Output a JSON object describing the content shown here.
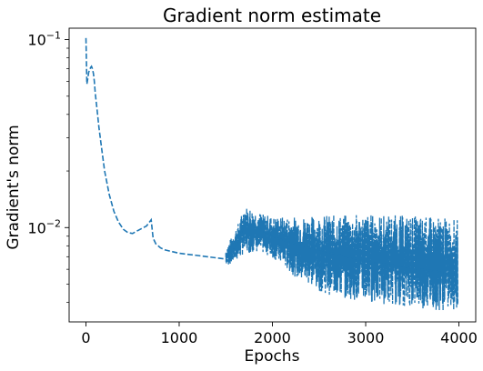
{
  "chart_data": {
    "type": "line",
    "title": "Gradient norm estimate",
    "xlabel": "Epochs",
    "ylabel": "Gradient's norm",
    "xlim": [
      -180,
      4180
    ],
    "ylim": [
      0.00315,
      0.115
    ],
    "yscale": "log",
    "grid": false,
    "line_style": "dashed",
    "line_color": "#1f77b4",
    "x_ticks": [
      0,
      1000,
      2000,
      3000,
      4000
    ],
    "x_tick_labels": [
      "0",
      "1000",
      "2000",
      "3000",
      "4000"
    ],
    "y_ticks": [
      0.1,
      0.01
    ],
    "y_tick_labels": [
      {
        "base": "10",
        "exp": "−1"
      },
      {
        "base": "10",
        "exp": "−2"
      }
    ],
    "series": [
      {
        "x": [
          0,
          10,
          20,
          30,
          40,
          50,
          60,
          70,
          80,
          90,
          100,
          120,
          140,
          170,
          200,
          250,
          300,
          350,
          400,
          450,
          500,
          550,
          600,
          650,
          700,
          720,
          750,
          800,
          850,
          900,
          1000,
          1100,
          1200,
          1300,
          1400,
          1500,
          1600,
          1650,
          1700,
          1800,
          1900,
          2000,
          2100,
          2200,
          2300,
          2400,
          2500,
          2600,
          2700,
          2800,
          2900,
          3000,
          3100,
          3200,
          3300,
          3400,
          3500,
          3600,
          3700,
          3800,
          3900,
          3990
        ],
        "y": [
          0.102,
          0.058,
          0.062,
          0.067,
          0.069,
          0.071,
          0.072,
          0.07,
          0.066,
          0.06,
          0.052,
          0.042,
          0.034,
          0.026,
          0.02,
          0.015,
          0.0122,
          0.0107,
          0.0098,
          0.0094,
          0.0093,
          0.0096,
          0.0099,
          0.0102,
          0.011,
          0.0088,
          0.0082,
          0.0078,
          0.0076,
          0.0075,
          0.0073,
          0.0072,
          0.0071,
          0.007,
          0.0069,
          0.0068,
          0.0078,
          0.0088,
          0.0105,
          0.0104,
          0.0096,
          0.009,
          0.0086,
          0.0083,
          0.008,
          0.0078,
          0.0076,
          0.0074,
          0.0072,
          0.007,
          0.0068,
          0.0066,
          0.0065,
          0.0064,
          0.0063,
          0.0062,
          0.0061,
          0.006,
          0.0059,
          0.0058,
          0.0057,
          0.0056
        ],
        "band_upper": [
          null,
          null,
          null,
          null,
          null,
          null,
          null,
          null,
          null,
          null,
          null,
          null,
          null,
          null,
          null,
          null,
          null,
          null,
          null,
          null,
          null,
          null,
          null,
          null,
          null,
          null,
          null,
          null,
          null,
          null,
          null,
          null,
          null,
          null,
          null,
          0.0077,
          0.0098,
          0.011,
          0.0132,
          0.0125,
          0.0118,
          0.0115,
          0.0114,
          0.0114,
          0.0115,
          0.0115,
          0.0116,
          0.0117,
          0.0117,
          0.0117,
          0.0118,
          0.0118,
          0.0118,
          0.0117,
          0.0117,
          0.0116,
          0.0116,
          0.0115,
          0.0114,
          0.0113,
          0.0112,
          0.0111
        ],
        "band_lower": [
          null,
          null,
          null,
          null,
          null,
          null,
          null,
          null,
          null,
          null,
          null,
          null,
          null,
          null,
          null,
          null,
          null,
          null,
          null,
          null,
          null,
          null,
          null,
          null,
          null,
          null,
          null,
          null,
          null,
          null,
          null,
          null,
          null,
          null,
          null,
          0.0062,
          0.0066,
          0.0069,
          0.0072,
          0.0074,
          0.0073,
          0.0069,
          0.0063,
          0.0057,
          0.0052,
          0.0049,
          0.0046,
          0.0044,
          0.0043,
          0.0042,
          0.0041,
          0.004,
          0.004,
          0.0039,
          0.0039,
          0.0038,
          0.0038,
          0.0037,
          0.0037,
          0.0036,
          0.0036,
          0.0036
        ]
      }
    ]
  }
}
